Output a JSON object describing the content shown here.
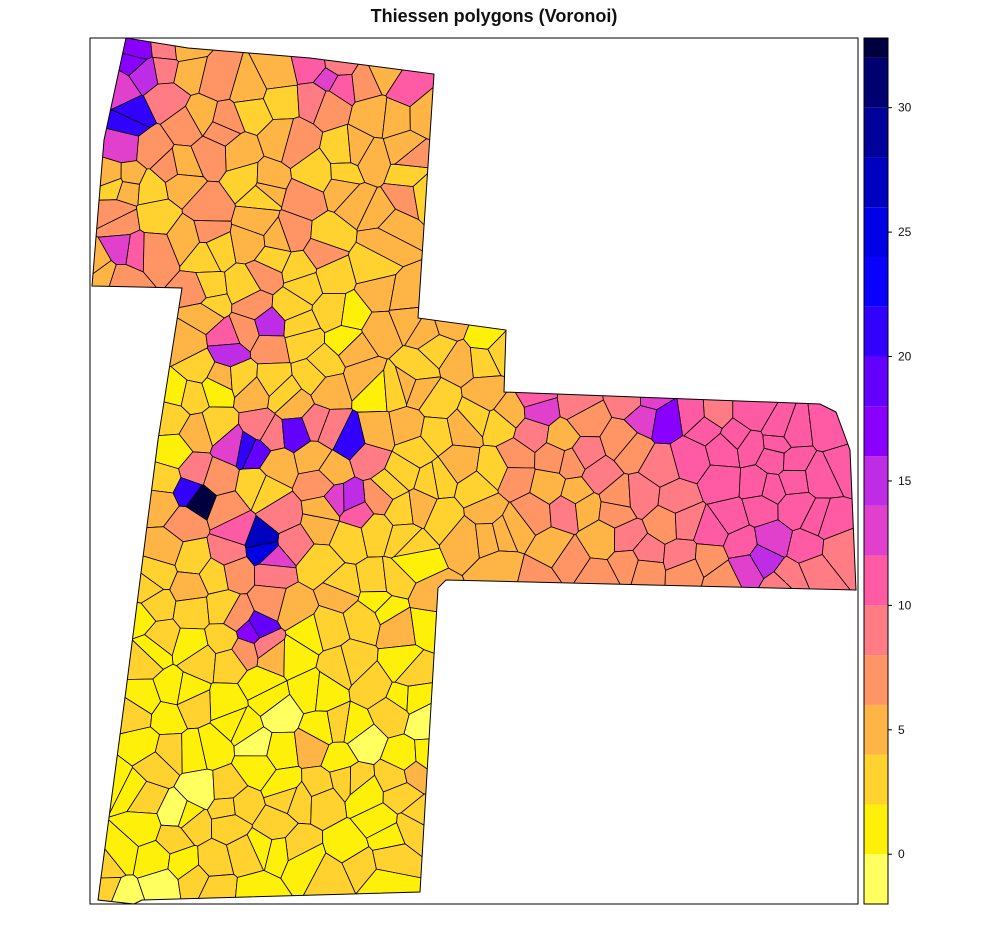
{
  "chart_data": {
    "type": "heatmap",
    "title": "Thiessen polygons (Voronoi)",
    "legend_placement": "right",
    "color_scale": {
      "breaks": [
        -2,
        0,
        2,
        4,
        6,
        8,
        10,
        12,
        14,
        16,
        18,
        20,
        22,
        24,
        26,
        28,
        30,
        32,
        33
      ],
      "colors": [
        "#FFFF60",
        "#FFF00A",
        "#FFD230",
        "#FFB446",
        "#FF9464",
        "#FF7C84",
        "#FF5AA4",
        "#E040CC",
        "#BE2CE6",
        "#8A00FF",
        "#6400FF",
        "#3200FF",
        "#0A00FF",
        "#0000E6",
        "#0000C0",
        "#00009A",
        "#000070",
        "#000040"
      ],
      "tick_values": [
        0,
        5,
        10,
        15,
        20,
        25,
        30
      ],
      "range": [
        -2,
        32.8
      ]
    },
    "polygon_count_shown": "≈480"
  }
}
